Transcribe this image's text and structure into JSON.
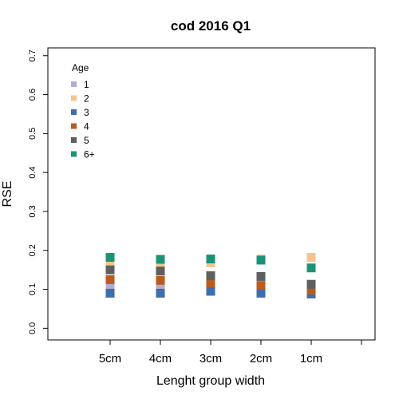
{
  "chart_data": {
    "type": "scatter",
    "title": "cod 2016 Q1",
    "xlabel": "Lenght group width",
    "ylabel": "RSE",
    "categories": [
      "5cm",
      "4cm",
      "3cm",
      "2cm",
      "1cm"
    ],
    "ylim": [
      -0.03,
      0.72
    ],
    "yticks": [
      "0.0",
      "0.1",
      "0.2",
      "0.3",
      "0.4",
      "0.5",
      "0.6",
      "0.7"
    ],
    "ytick_values": [
      0.0,
      0.1,
      0.2,
      0.3,
      0.4,
      0.5,
      0.6,
      0.7
    ],
    "grid": false,
    "legend": {
      "title": "Age",
      "placement": "top-left"
    },
    "series": [
      {
        "name": "1",
        "color": "#b2abd2",
        "values": [
          0.108,
          0.108,
          0.108,
          0.103,
          0.1
        ]
      },
      {
        "name": "2",
        "color": "#f4c48e",
        "values": [
          0.166,
          0.162,
          0.168,
          0.178,
          0.182
        ]
      },
      {
        "name": "3",
        "color": "#3f6ead",
        "values": [
          0.09,
          0.09,
          0.095,
          0.09,
          0.088
        ]
      },
      {
        "name": "4",
        "color": "#b85c1f",
        "values": [
          0.125,
          0.123,
          0.117,
          0.11,
          0.098
        ]
      },
      {
        "name": "5",
        "color": "#5f5f5f",
        "values": [
          0.15,
          0.147,
          0.135,
          0.133,
          0.113
        ]
      },
      {
        "name": "6+",
        "color": "#1b9476",
        "values": [
          0.182,
          0.177,
          0.178,
          0.175,
          0.155
        ]
      }
    ]
  }
}
